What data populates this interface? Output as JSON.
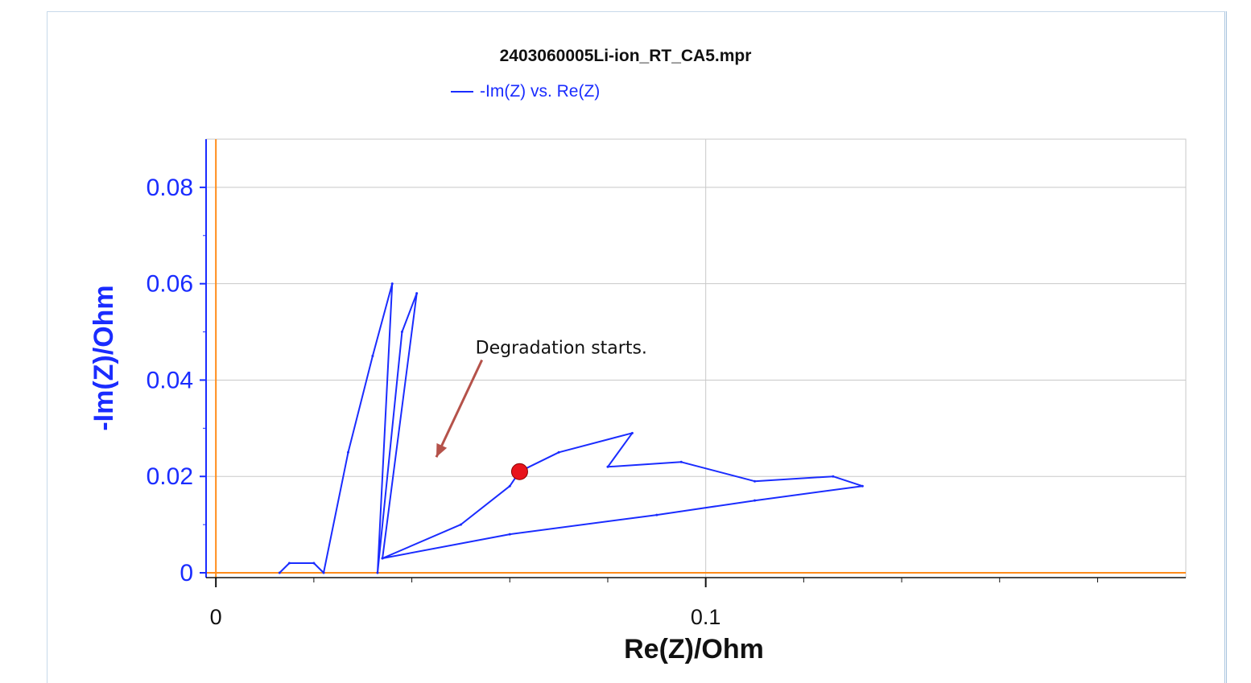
{
  "chart_data": {
    "type": "line",
    "title": "2403060005Li-ion_RT_CA5.mpr",
    "legend": [
      {
        "name": "-Im(Z) vs. Re(Z)",
        "color": "#1a2cff"
      }
    ],
    "xlabel": "Re(Z)/Ohm",
    "ylabel": "-Im(Z)/Ohm",
    "xlim": [
      -0.002,
      0.198
    ],
    "ylim": [
      -0.001,
      0.09
    ],
    "x_ticks": [
      {
        "value": 0,
        "label": "0"
      },
      {
        "value": 0.1,
        "label": "0.1"
      }
    ],
    "y_ticks": [
      {
        "value": 0,
        "label": "0"
      },
      {
        "value": 0.02,
        "label": "0.02"
      },
      {
        "value": 0.04,
        "label": "0.04"
      },
      {
        "value": 0.06,
        "label": "0.06"
      },
      {
        "value": 0.08,
        "label": "0.08"
      }
    ],
    "grid": true,
    "reference_lines": {
      "x": 0,
      "y": 0,
      "color": "#ff8c1a"
    },
    "series": [
      {
        "name": "-Im(Z) vs. Re(Z)",
        "color": "#1a2cff",
        "points": [
          {
            "x": 0.013,
            "y": 0.0
          },
          {
            "x": 0.015,
            "y": 0.002
          },
          {
            "x": 0.02,
            "y": 0.002
          },
          {
            "x": 0.022,
            "y": 0.0
          },
          {
            "x": 0.027,
            "y": 0.025
          },
          {
            "x": 0.032,
            "y": 0.045
          },
          {
            "x": 0.036,
            "y": 0.06
          },
          {
            "x": 0.033,
            "y": 0.0
          },
          {
            "x": 0.038,
            "y": 0.05
          },
          {
            "x": 0.041,
            "y": 0.058
          },
          {
            "x": 0.034,
            "y": 0.003
          },
          {
            "x": 0.05,
            "y": 0.01
          },
          {
            "x": 0.06,
            "y": 0.018
          },
          {
            "x": 0.062,
            "y": 0.021
          },
          {
            "x": 0.07,
            "y": 0.025
          },
          {
            "x": 0.085,
            "y": 0.029
          },
          {
            "x": 0.08,
            "y": 0.022
          },
          {
            "x": 0.095,
            "y": 0.023
          },
          {
            "x": 0.11,
            "y": 0.019
          },
          {
            "x": 0.126,
            "y": 0.02
          },
          {
            "x": 0.132,
            "y": 0.018
          },
          {
            "x": 0.11,
            "y": 0.015
          },
          {
            "x": 0.09,
            "y": 0.012
          },
          {
            "x": 0.06,
            "y": 0.008
          },
          {
            "x": 0.034,
            "y": 0.003
          }
        ]
      }
    ],
    "highlight_point": {
      "x": 0.062,
      "y": 0.021,
      "color": "#e8141c"
    },
    "annotations": [
      {
        "text": "Degradation starts.",
        "x": 0.053,
        "y": 0.0455,
        "arrow_to": {
          "x": 0.045,
          "y": 0.024
        },
        "arrow_color": "#b5524a"
      }
    ]
  }
}
